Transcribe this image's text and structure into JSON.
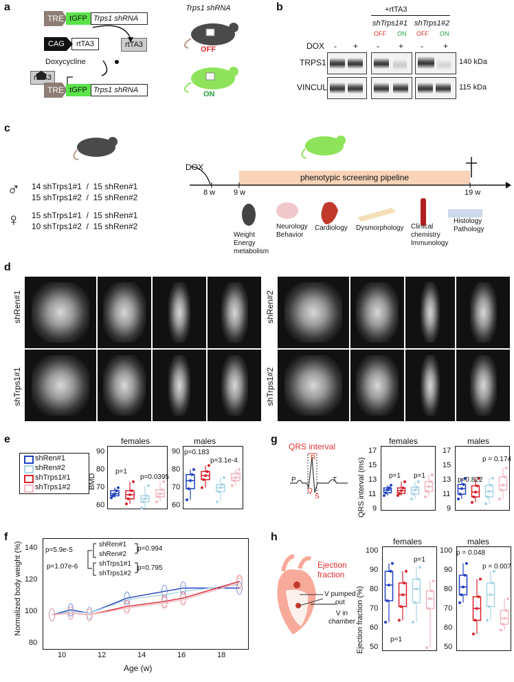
{
  "panels": {
    "a": {
      "label": "a",
      "tre": "TRE",
      "tgfp": "tGFP",
      "trps1_shrna": "Trps1 shRNA",
      "cag": "CAG",
      "rtta3": "rtTA3",
      "rtta3_protein": "rtTA3",
      "doxycycline": "Doxycycline",
      "mouse_title": "Trps1 shRNA",
      "off": "OFF",
      "on": "ON"
    },
    "b": {
      "label": "b",
      "rtta3_header": "+rtTA3",
      "sh1": "shTrps1#1",
      "sh2": "shTrps1#2",
      "off": "OFF",
      "on": "ON",
      "dox": "DOX",
      "dox_states": [
        "-",
        "+",
        "-",
        "+",
        "-",
        "+"
      ],
      "trps1": "TRPS1",
      "vinculin": "VINCULIN",
      "kda140": "140 kDa",
      "kda115": "115 kDa"
    },
    "c": {
      "label": "c",
      "male_symbol": "♂",
      "female_symbol": "♀",
      "male_rows": [
        "14 shTrps1#1  /  15 shRen#1",
        "15 shTrps1#2  /  15 shRen#2"
      ],
      "female_rows": [
        "15 shTrps1#1  /  15 shRen#1",
        "10 shTrps1#2  /  15 shRen#2"
      ],
      "dox": "DOX",
      "w8": "8 w",
      "w9": "9 w",
      "w19": "19 w",
      "pipeline": "phenotypic screening pipeline",
      "screens": [
        "Weight\nEnergy\nmetabolism",
        "Neurology\nBehavior",
        "Cardiology",
        "Dysmorphology",
        "Clinical\nchemistry\nImmunology",
        "Histology\nPathology"
      ]
    },
    "d": {
      "label": "d",
      "rows": [
        "shRen#1",
        "shTrps1#1",
        "shRen#2",
        "shTrps1#2"
      ]
    },
    "e": {
      "label": "e",
      "legend": [
        "shRen#1",
        "shRen#2",
        "shTrps1#1",
        "shTrps1#2"
      ],
      "ylabel": "BMD",
      "females": "females",
      "males": "males",
      "yticks": [
        "90",
        "80",
        "70",
        "60"
      ],
      "p_fem": [
        "p=1",
        "p=0.0395"
      ],
      "p_male": [
        "p=0.183",
        "p=3.1e-4"
      ]
    },
    "f": {
      "label": "f",
      "ylabel": "Normalized body weight (%)",
      "xlabel": "Age (w)",
      "yticks": [
        "140",
        "120",
        "100",
        "80"
      ],
      "xticks": [
        "10",
        "12",
        "14",
        "16",
        "18"
      ],
      "p_left1": "p=5.9e-5",
      "p_left2": "p=1.07e-6",
      "g1": "shRen#1",
      "g2": "shRen#2",
      "g3": "shTrps1#1",
      "g4": "shTrps1#2",
      "p_right1": "p=0.994",
      "p_right2": "p=0.795"
    },
    "g": {
      "label": "g",
      "title": "QRS interval",
      "ecg": [
        "P",
        "R",
        "Q",
        "S",
        "T"
      ],
      "ylabel": "QRS interval (ms)",
      "females": "females",
      "males": "males",
      "yticks": [
        "17",
        "15",
        "13",
        "11",
        "9"
      ],
      "p_fem": [
        "p=1",
        "p=1"
      ],
      "p_male": [
        "p=0.822",
        "p = 0.174"
      ]
    },
    "h": {
      "label": "h",
      "title": "Ejection\nfraction",
      "v_out": "V pumped\nout",
      "v_in": "V in\nchamber",
      "ylabel": "Ejection fraction (%)",
      "females": "females",
      "males": "males",
      "yticks": [
        "100",
        "90",
        "80",
        "70",
        "60",
        "50"
      ],
      "p_fem": [
        "p=1",
        "p=1"
      ],
      "p_male": [
        "p = 0.048",
        "p = 0.007"
      ]
    }
  },
  "colors": {
    "shRen1": "#1f3fbf",
    "shRen2": "#a9d4e6",
    "shTrps1_1": "#d9202a",
    "shTrps1_2": "#f2b8c2",
    "gfp": "#5be34a",
    "off": "#e03030",
    "on": "#20a040",
    "pipeline": "#f8d3b8",
    "mouse_dark": "#4a4a4a",
    "mouse_green": "#8ee35a"
  },
  "chart_data": [
    {
      "type": "box",
      "panel": "e",
      "title": "females",
      "ylabel": "BMD",
      "ylim": [
        60,
        90
      ],
      "categories": [
        "shRen#1",
        "shRen#2",
        "shTrps1#1",
        "shTrps1#2"
      ],
      "stats": [
        {
          "name": "shRen#1",
          "min": 65,
          "q1": 66,
          "median": 67,
          "q3": 68.5,
          "max": 70
        },
        {
          "name": "shTrps1#1",
          "min": 62,
          "q1": 64.5,
          "median": 66.5,
          "q3": 68.5,
          "max": 73
        },
        {
          "name": "shRen#2",
          "min": 60,
          "q1": 63,
          "median": 64.5,
          "q3": 66,
          "max": 71
        },
        {
          "name": "shTrps1#2",
          "min": 63,
          "q1": 65.5,
          "median": 67,
          "q3": 69,
          "max": 73
        }
      ]
    },
    {
      "type": "box",
      "panel": "e",
      "title": "males",
      "ylabel": "BMD",
      "ylim": [
        60,
        90
      ],
      "stats": [
        {
          "name": "shRen#1",
          "min": 64,
          "q1": 69.5,
          "median": 73.5,
          "q3": 76.5,
          "max": 79
        },
        {
          "name": "shTrps1#1",
          "min": 70,
          "q1": 74,
          "median": 76,
          "q3": 78,
          "max": 81
        },
        {
          "name": "shRen#2",
          "min": 63,
          "q1": 68,
          "median": 70,
          "q3": 71.5,
          "max": 75
        },
        {
          "name": "shTrps1#2",
          "min": 71,
          "q1": 73.5,
          "median": 75,
          "q3": 77,
          "max": 79
        }
      ]
    },
    {
      "type": "line",
      "panel": "f",
      "xlabel": "Age (w)",
      "ylabel": "Normalized body weight (%)",
      "xlim": [
        8.5,
        19.5
      ],
      "ylim": [
        80,
        145
      ],
      "x": [
        9,
        10,
        11,
        13,
        15,
        16,
        19
      ],
      "series": [
        {
          "name": "shRen#1",
          "values": [
            100,
            103,
            101,
            110,
            114,
            116,
            116
          ]
        },
        {
          "name": "shRen#2",
          "values": [
            100,
            102,
            101,
            109,
            112,
            114,
            118
          ]
        },
        {
          "name": "shTrps1#1",
          "values": [
            100,
            101,
            100,
            105,
            108,
            110,
            120
          ]
        },
        {
          "name": "shTrps1#2",
          "values": [
            100,
            101,
            100,
            104,
            107,
            109,
            119
          ]
        }
      ]
    },
    {
      "type": "box",
      "panel": "g",
      "title": "females",
      "ylabel": "QRS interval (ms)",
      "ylim": [
        9,
        18
      ],
      "stats": [
        {
          "name": "shRen#1",
          "min": 11,
          "q1": 11.4,
          "median": 11.8,
          "q3": 12.1,
          "max": 12.5
        },
        {
          "name": "shTrps1#1",
          "min": 11,
          "q1": 11.3,
          "median": 11.7,
          "q3": 12.1,
          "max": 13
        },
        {
          "name": "shRen#2",
          "min": 10.5,
          "q1": 11.2,
          "median": 11.8,
          "q3": 12.2,
          "max": 13
        },
        {
          "name": "shTrps1#2",
          "min": 10.8,
          "q1": 11.6,
          "median": 12.3,
          "q3": 13,
          "max": 14
        }
      ]
    },
    {
      "type": "box",
      "panel": "g",
      "title": "males",
      "ylabel": "QRS interval (ms)",
      "ylim": [
        9,
        18
      ],
      "stats": [
        {
          "name": "shRen#1",
          "min": 10.5,
          "q1": 11.2,
          "median": 12,
          "q3": 12.6,
          "max": 13.5
        },
        {
          "name": "shTrps1#1",
          "min": 10,
          "q1": 10.8,
          "median": 11.5,
          "q3": 12.4,
          "max": 13.5
        },
        {
          "name": "shRen#2",
          "min": 9.8,
          "q1": 10.8,
          "median": 11.6,
          "q3": 12.5,
          "max": 13.5
        },
        {
          "name": "shTrps1#2",
          "min": 10.5,
          "q1": 11.8,
          "median": 12.5,
          "q3": 13.7,
          "max": 15
        }
      ]
    },
    {
      "type": "box",
      "panel": "h",
      "title": "females",
      "ylabel": "Ejection fraction (%)",
      "ylim": [
        48,
        100
      ],
      "stats": [
        {
          "name": "shRen#1",
          "min": 62,
          "q1": 73,
          "median": 81,
          "q3": 88,
          "max": 92
        },
        {
          "name": "shTrps1#1",
          "min": 63,
          "q1": 70,
          "median": 76,
          "q3": 82,
          "max": 88
        },
        {
          "name": "shRen#2",
          "min": 62,
          "q1": 72,
          "median": 79,
          "q3": 84,
          "max": 90
        },
        {
          "name": "shTrps1#2",
          "min": 49,
          "q1": 69,
          "median": 74,
          "q3": 78,
          "max": 83
        }
      ]
    },
    {
      "type": "box",
      "panel": "h",
      "title": "males",
      "ylabel": "Ejection fraction (%)",
      "ylim": [
        48,
        100
      ],
      "stats": [
        {
          "name": "shRen#1",
          "min": 72,
          "q1": 76,
          "median": 80,
          "q3": 86,
          "max": 92
        },
        {
          "name": "shTrps1#1",
          "min": 56,
          "q1": 63,
          "median": 69,
          "q3": 75,
          "max": 84
        },
        {
          "name": "shRen#2",
          "min": 63,
          "q1": 70,
          "median": 76,
          "q3": 82,
          "max": 88
        },
        {
          "name": "shTrps1#2",
          "min": 58,
          "q1": 61,
          "median": 64,
          "q3": 68,
          "max": 74
        }
      ]
    }
  ]
}
